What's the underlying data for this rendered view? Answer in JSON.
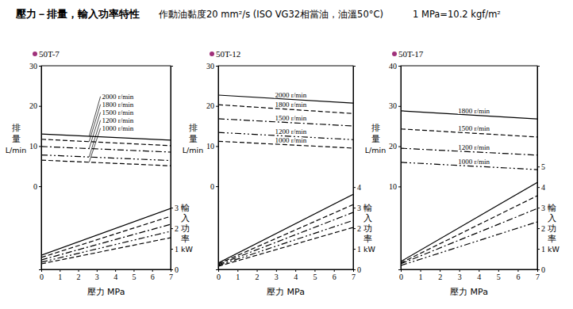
{
  "header": [
    "壓力－排量，輸入功率特性",
    "作動油黏度20 mm²/s  (ISO VG32相當油，油溫50°C)",
    "1 MPa=10.2 kgf/m²"
  ],
  "chart_data": [
    {
      "type": "line",
      "title": "50T-7",
      "xlabel": "壓力 MPa",
      "ylabel": [
        "排",
        "量",
        "L/min"
      ],
      "y2label": [
        "輸",
        "入",
        "功",
        "率",
        "kW"
      ],
      "x": [
        0,
        7
      ],
      "xlim": [
        0,
        7
      ],
      "xticks": [
        0,
        1,
        2,
        3,
        4,
        5,
        6,
        7
      ],
      "ylim": [
        -20.7,
        30
      ],
      "yticks": [
        0,
        10,
        20,
        30
      ],
      "y2lim": [
        0,
        9.9
      ],
      "y2ticks": [
        0,
        1,
        2,
        3
      ],
      "grid": false,
      "series": [
        {
          "name": "2000 r/min",
          "color": "#000000",
          "line_style": "solid",
          "values": [
            13.0,
            11.5
          ]
        },
        {
          "name": "1800 r/min",
          "color": "#000000",
          "line_style": "dashed",
          "values": [
            11.7,
            10.1
          ]
        },
        {
          "name": "1500 r/min",
          "color": "#000000",
          "line_style": "dashdot",
          "values": [
            9.9,
            8.5
          ]
        },
        {
          "name": "1200 r/min",
          "color": "#000000",
          "line_style": "dashdotdot",
          "values": [
            7.8,
            6.4
          ]
        },
        {
          "name": "1000 r/min",
          "color": "#000000",
          "line_style": "dashed",
          "values": [
            6.5,
            5.1
          ]
        },
        {
          "axis": "y2",
          "color": "#000000",
          "line_style": "solid",
          "values": [
            0.69,
            2.96
          ]
        },
        {
          "axis": "y2",
          "color": "#000000",
          "line_style": "dashed",
          "values": [
            0.58,
            2.58
          ]
        },
        {
          "axis": "y2",
          "color": "#000000",
          "line_style": "dashdot",
          "values": [
            0.46,
            2.19
          ]
        },
        {
          "axis": "y2",
          "color": "#000000",
          "line_style": "dashdotdot",
          "values": [
            0.35,
            1.85
          ]
        },
        {
          "axis": "y2",
          "color": "#000000",
          "line_style": "dashed",
          "values": [
            0.27,
            1.54
          ]
        }
      ]
    },
    {
      "type": "line",
      "title": "50T-12",
      "xlabel": "壓力 MPa",
      "ylabel": [
        "排",
        "量",
        "L/min"
      ],
      "y2label": [
        "輸",
        "入",
        "功",
        "率",
        "kW"
      ],
      "x": [
        0,
        7
      ],
      "xlim": [
        0,
        7
      ],
      "xticks": [
        0,
        1,
        2,
        3,
        4,
        5,
        6,
        7
      ],
      "ylim": [
        -20.7,
        30
      ],
      "yticks": [
        0,
        10,
        20,
        30
      ],
      "y2lim": [
        0,
        9.9
      ],
      "y2ticks": [
        0,
        1,
        2,
        3,
        4
      ],
      "grid": false,
      "series": [
        {
          "name": "2000 r/min",
          "color": "#000000",
          "line_style": "solid",
          "values": [
            22.7,
            20.7
          ]
        },
        {
          "name": "1800 r/min",
          "color": "#000000",
          "line_style": "dashed",
          "values": [
            20.3,
            18.1
          ]
        },
        {
          "name": "1500 r/min",
          "color": "#000000",
          "line_style": "dashdot",
          "values": [
            16.8,
            15.0
          ]
        },
        {
          "name": "1200 r/min",
          "color": "#000000",
          "line_style": "dashdotdot",
          "values": [
            13.4,
            11.6
          ]
        },
        {
          "name": "1000 r/min",
          "color": "#000000",
          "line_style": "dashed",
          "values": [
            11.2,
            9.5
          ]
        },
        {
          "axis": "y2",
          "color": "#000000",
          "line_style": "solid",
          "values": [
            0.31,
            3.65
          ]
        },
        {
          "axis": "y2",
          "color": "#000000",
          "line_style": "dashed",
          "values": [
            0.27,
            3.15
          ]
        },
        {
          "axis": "y2",
          "color": "#000000",
          "line_style": "dashdot",
          "values": [
            0.23,
            2.77
          ]
        },
        {
          "axis": "y2",
          "color": "#000000",
          "line_style": "dashdotdot",
          "values": [
            0.19,
            2.38
          ]
        },
        {
          "axis": "y2",
          "color": "#000000",
          "line_style": "dashed",
          "values": [
            0.15,
            2.04
          ]
        }
      ]
    },
    {
      "type": "line",
      "title": "50T-17",
      "xlabel": "壓力 MPa",
      "ylabel": [
        "排",
        "量",
        "L/min"
      ],
      "y2label": [
        "輸",
        "入",
        "功",
        "率",
        "kW"
      ],
      "x": [
        0,
        7
      ],
      "xlim": [
        0,
        7
      ],
      "xticks": [
        0,
        1,
        2,
        3,
        4,
        5,
        6,
        7
      ],
      "ylim": [
        -10.6,
        40
      ],
      "yticks": [
        10,
        20,
        30,
        40
      ],
      "y2lim": [
        0,
        9.9
      ],
      "y2ticks": [
        0,
        1,
        2,
        3,
        4,
        5
      ],
      "grid": false,
      "series": [
        {
          "name": "1800 r/min",
          "color": "#000000",
          "line_style": "solid",
          "values": [
            28.8,
            26.8
          ]
        },
        {
          "name": "1500 r/min",
          "color": "#000000",
          "line_style": "dashed",
          "values": [
            24.3,
            22.3
          ]
        },
        {
          "name": "1200 r/min",
          "color": "#000000",
          "line_style": "dashdot",
          "values": [
            19.5,
            17.8
          ]
        },
        {
          "name": "1000 r/min",
          "color": "#000000",
          "line_style": "dashdotdot",
          "values": [
            16.0,
            14.2
          ]
        },
        {
          "axis": "y2",
          "color": "#000000",
          "line_style": "solid",
          "values": [
            0.38,
            4.23
          ]
        },
        {
          "axis": "y2",
          "color": "#000000",
          "line_style": "dashed",
          "values": [
            0.31,
            3.58
          ]
        },
        {
          "axis": "y2",
          "color": "#000000",
          "line_style": "dashdot",
          "values": [
            0.27,
            2.96
          ]
        },
        {
          "axis": "y2",
          "color": "#000000",
          "line_style": "dashdotdot",
          "values": [
            0.19,
            2.31
          ]
        }
      ]
    }
  ]
}
